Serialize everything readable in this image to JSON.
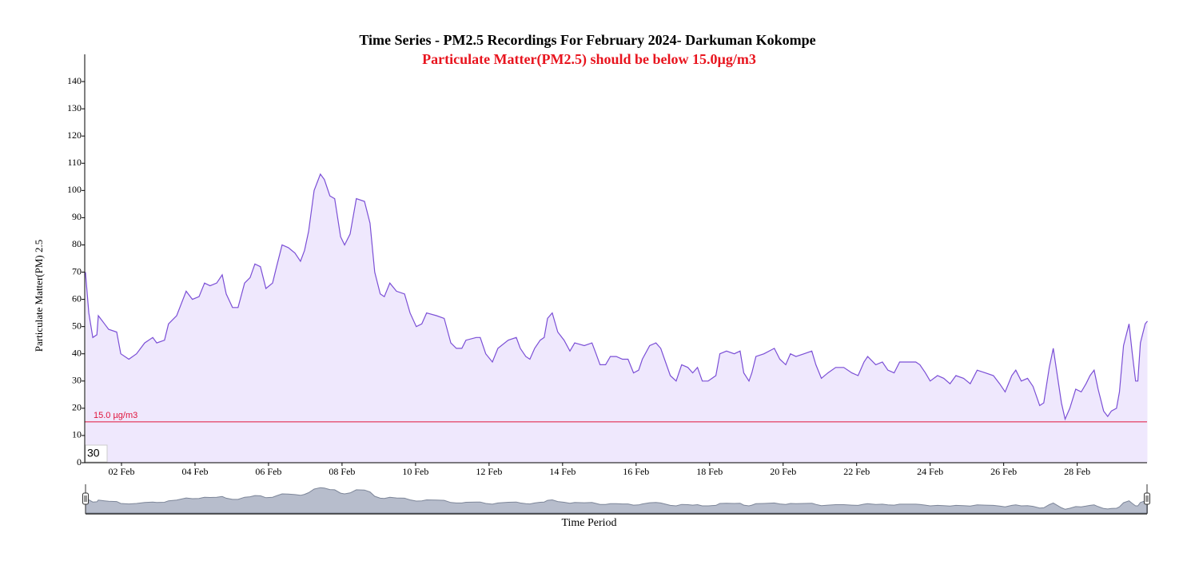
{
  "chart_data": {
    "type": "area",
    "title": "Time Series - PM2.5 Recordings For February 2024- Darkuman Kokompe",
    "subtitle": "Particulate Matter(PM2.5) should be below 15.0µg/m3",
    "y_label": "Particulate Matter(PM) 2.5",
    "x_label": "Time Period",
    "range_box": "30",
    "threshold": {
      "value": 15,
      "label": "15.0 µg/m3",
      "color": "#e0143c"
    },
    "xlim": [
      1,
      29.9
    ],
    "ylim": [
      0,
      150
    ],
    "yticks": [
      0,
      10,
      20,
      30,
      40,
      50,
      60,
      70,
      80,
      90,
      100,
      110,
      120,
      130,
      140
    ],
    "xticks": [
      {
        "value": 2,
        "label": "02 Feb"
      },
      {
        "value": 4,
        "label": "04 Feb"
      },
      {
        "value": 6,
        "label": "06 Feb"
      },
      {
        "value": 8,
        "label": "08 Feb"
      },
      {
        "value": 10,
        "label": "10 Feb"
      },
      {
        "value": 12,
        "label": "12 Feb"
      },
      {
        "value": 14,
        "label": "14 Feb"
      },
      {
        "value": 16,
        "label": "16 Feb"
      },
      {
        "value": 18,
        "label": "18 Feb"
      },
      {
        "value": 20,
        "label": "20 Feb"
      },
      {
        "value": 22,
        "label": "22 Feb"
      },
      {
        "value": 24,
        "label": "24 Feb"
      },
      {
        "value": 26,
        "label": "26 Feb"
      },
      {
        "value": 28,
        "label": "28 Feb"
      }
    ],
    "grid": false,
    "series": [
      {
        "name": "PM2.5",
        "color": "#7b4fd6",
        "fill": "#efe8fd",
        "x": [
          1.02,
          1.11,
          1.22,
          1.33,
          1.37,
          1.54,
          1.65,
          1.87,
          1.98,
          2.2,
          2.41,
          2.63,
          2.85,
          2.96,
          3.17,
          3.28,
          3.5,
          3.76,
          3.93,
          4.11,
          4.26,
          4.41,
          4.59,
          4.74,
          4.85,
          5.02,
          5.17,
          5.35,
          5.5,
          5.63,
          5.78,
          5.93,
          6.11,
          6.22,
          6.37,
          6.54,
          6.72,
          6.87,
          6.98,
          7.09,
          7.24,
          7.41,
          7.52,
          7.67,
          7.8,
          7.96,
          8.07,
          8.22,
          8.39,
          8.61,
          8.76,
          8.89,
          9.04,
          9.15,
          9.3,
          9.48,
          9.7,
          9.85,
          10.02,
          10.17,
          10.3,
          10.57,
          10.78,
          10.96,
          11.11,
          11.26,
          11.37,
          11.65,
          11.76,
          11.91,
          12.09,
          12.24,
          12.52,
          12.74,
          12.85,
          13.0,
          13.11,
          13.24,
          13.39,
          13.5,
          13.59,
          13.72,
          13.87,
          14.04,
          14.2,
          14.33,
          14.59,
          14.8,
          14.91,
          15.02,
          15.17,
          15.3,
          15.46,
          15.63,
          15.78,
          15.93,
          16.07,
          16.17,
          16.37,
          16.54,
          16.67,
          16.8,
          16.93,
          17.09,
          17.24,
          17.41,
          17.54,
          17.67,
          17.8,
          17.96,
          18.17,
          18.28,
          18.46,
          18.67,
          18.83,
          18.93,
          19.07,
          19.15,
          19.26,
          19.48,
          19.76,
          19.91,
          20.07,
          20.2,
          20.35,
          20.57,
          20.78,
          20.89,
          21.04,
          21.22,
          21.43,
          21.65,
          21.87,
          22.04,
          22.2,
          22.3,
          22.52,
          22.7,
          22.85,
          23.02,
          23.17,
          23.39,
          23.61,
          23.72,
          23.87,
          24.0,
          24.2,
          24.37,
          24.54,
          24.7,
          24.91,
          25.09,
          25.28,
          25.5,
          25.72,
          25.89,
          26.04,
          26.22,
          26.33,
          26.48,
          26.65,
          26.8,
          26.98,
          27.09,
          27.24,
          27.35,
          27.46,
          27.57,
          27.67,
          27.8,
          27.96,
          28.11,
          28.24,
          28.35,
          28.46,
          28.57,
          28.72,
          28.83,
          28.93,
          29.07,
          29.15,
          29.26,
          29.41,
          29.5,
          29.59,
          29.65,
          29.72,
          29.85,
          29.91
        ],
        "values": [
          70,
          55,
          46,
          47,
          54,
          51,
          49,
          48,
          40,
          38,
          40,
          44,
          46,
          44,
          45,
          51,
          54,
          63,
          60,
          61,
          66,
          65,
          66,
          69,
          62,
          57,
          57,
          66,
          68,
          73,
          72,
          64,
          66,
          72,
          80,
          79,
          77,
          74,
          78,
          85,
          100,
          106,
          104,
          98,
          97,
          83,
          80,
          84,
          97,
          96,
          88,
          70,
          62,
          61,
          66,
          63,
          62,
          55,
          50,
          51,
          55,
          54,
          53,
          44,
          42,
          42,
          45,
          46,
          46,
          40,
          37,
          42,
          45,
          46,
          42,
          39,
          38,
          42,
          45,
          46,
          53,
          55,
          48,
          45,
          41,
          44,
          43,
          44,
          40,
          36,
          36,
          39,
          39,
          38,
          38,
          33,
          34,
          38,
          43,
          44,
          42,
          37,
          32,
          30,
          36,
          35,
          33,
          35,
          30,
          30,
          32,
          40,
          41,
          40,
          41,
          33,
          30,
          33,
          39,
          40,
          42,
          38,
          36,
          40,
          39,
          40,
          41,
          36,
          31,
          33,
          35,
          35,
          33,
          32,
          37,
          39,
          36,
          37,
          34,
          33,
          37,
          37,
          37,
          36,
          33,
          30,
          32,
          31,
          29,
          32,
          31,
          29,
          34,
          33,
          32,
          29,
          26,
          32,
          34,
          30,
          31,
          28,
          21,
          22,
          35,
          42,
          32,
          22,
          16,
          20,
          27,
          26,
          29,
          32,
          34,
          27,
          19,
          17,
          19,
          20,
          26,
          43,
          51,
          40,
          30,
          30,
          44,
          51,
          52
        ]
      }
    ]
  }
}
